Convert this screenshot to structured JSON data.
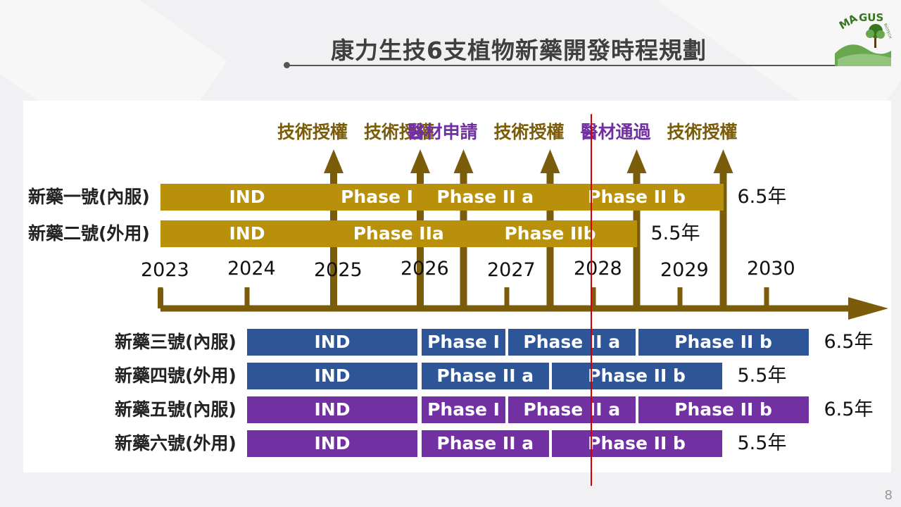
{
  "title": "康力生技6支植物新藥開發時程規劃",
  "logo": {
    "text": "MAGUS",
    "subtext": "BIOTECH"
  },
  "page_number": "8",
  "colors": {
    "gold": "#b8900a",
    "blue": "#2e5597",
    "purple": "#7131a3",
    "marker": "#d40000",
    "arrow": "#7a5c0a"
  },
  "years": [
    "2023",
    "2024",
    "2025",
    "2026",
    "2027",
    "2028",
    "2029",
    "2030"
  ],
  "milestones": [
    {
      "label": "技術授權",
      "year": 2025,
      "color": "gold"
    },
    {
      "label": "技術授權",
      "year": 2026,
      "color": "gold"
    },
    {
      "label": "醫材申請",
      "year": 2026.5,
      "color": "purple"
    },
    {
      "label": "技術授權",
      "year": 2027.5,
      "color": "gold"
    },
    {
      "label": "醫材通過",
      "year": 2028.5,
      "color": "purple"
    },
    {
      "label": "技術授權",
      "year": 2029.5,
      "color": "gold"
    }
  ],
  "drugs": [
    {
      "name": "新藥一號(內服)",
      "color": "gold",
      "duration": "6.5年",
      "phases": [
        {
          "label": "IND",
          "start": 2023,
          "end": 2025
        },
        {
          "label": "Phase I",
          "start": 2025,
          "end": 2026
        },
        {
          "label": "Phase II a",
          "start": 2026,
          "end": 2027.5
        },
        {
          "label": "Phase II b",
          "start": 2027.5,
          "end": 2029.5
        }
      ]
    },
    {
      "name": "新藥二號(外用)",
      "color": "gold",
      "duration": "5.5年",
      "phases": [
        {
          "label": "IND",
          "start": 2023,
          "end": 2025
        },
        {
          "label": "Phase IIa",
          "start": 2025,
          "end": 2026.5
        },
        {
          "label": "Phase IIb",
          "start": 2026.5,
          "end": 2028.5
        }
      ]
    },
    {
      "name": "新藥三號(內服)",
      "color": "blue",
      "duration": "6.5年",
      "phases": [
        {
          "label": "IND",
          "start": 2024,
          "end": 2026
        },
        {
          "label": "Phase I",
          "start": 2026,
          "end": 2027
        },
        {
          "label": "Phase II a",
          "start": 2027,
          "end": 2028.5
        },
        {
          "label": "Phase II b",
          "start": 2028.5,
          "end": 2030.5
        }
      ]
    },
    {
      "name": "新藥四號(外用)",
      "color": "blue",
      "duration": "5.5年",
      "phases": [
        {
          "label": "IND",
          "start": 2024,
          "end": 2026
        },
        {
          "label": "Phase II a",
          "start": 2026,
          "end": 2027.5
        },
        {
          "label": "Phase II b",
          "start": 2027.5,
          "end": 2029.5
        }
      ]
    },
    {
      "name": "新藥五號(內服)",
      "color": "purple",
      "duration": "6.5年",
      "phases": [
        {
          "label": "IND",
          "start": 2024,
          "end": 2026
        },
        {
          "label": "Phase I",
          "start": 2026,
          "end": 2027
        },
        {
          "label": "Phase II a",
          "start": 2027,
          "end": 2028.5
        },
        {
          "label": "Phase II b",
          "start": 2028.5,
          "end": 2030.5
        }
      ]
    },
    {
      "name": "新藥六號(外用)",
      "color": "purple",
      "duration": "5.5年",
      "phases": [
        {
          "label": "IND",
          "start": 2024,
          "end": 2026
        },
        {
          "label": "Phase II a",
          "start": 2026,
          "end": 2027.5
        },
        {
          "label": "Phase II b",
          "start": 2027.5,
          "end": 2029.5
        }
      ]
    }
  ]
}
